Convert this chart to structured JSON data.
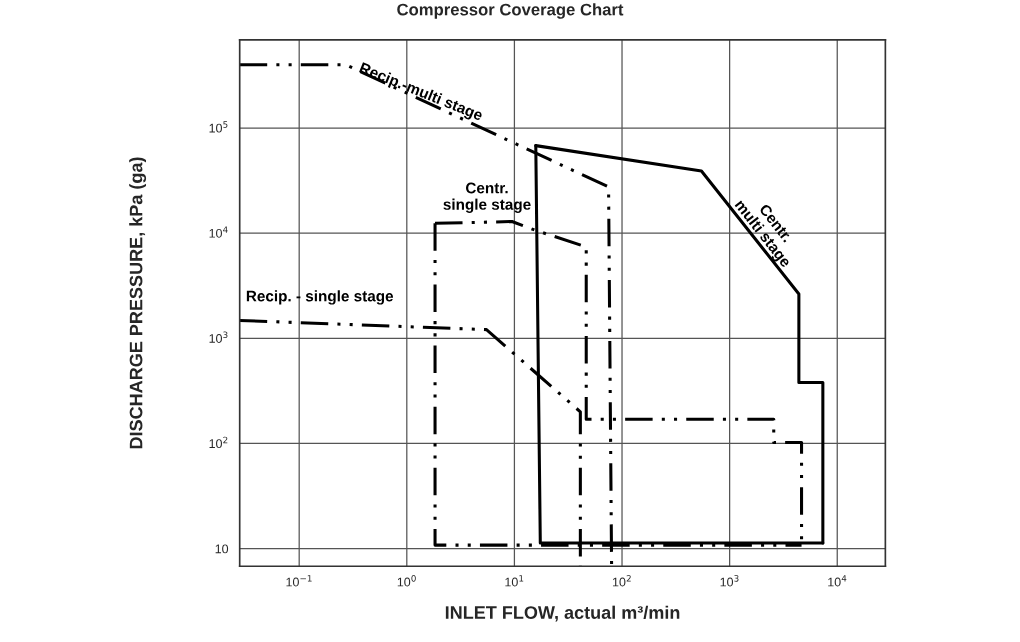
{
  "chart_data": {
    "type": "line",
    "title": "Compressor Coverage Chart",
    "xlabel": "INLET FLOW, actual m³/min",
    "ylabel": "DISCHARGE PRESSURE, kPa (ga)",
    "log": "xy",
    "grid": true,
    "legend": false,
    "marker": "none",
    "xlim": [
      0.028,
      28000
    ],
    "ylim": [
      6.8,
      690000
    ],
    "xticks": [
      {
        "value": 0.1,
        "label": "10$^{−1}$"
      },
      {
        "value": 1,
        "label": "10$^{0}$"
      },
      {
        "value": 10,
        "label": "10$^{1}$"
      },
      {
        "value": 100,
        "label": "10$^{2}$"
      },
      {
        "value": 1000,
        "label": "10$^{3}$"
      },
      {
        "value": 10000,
        "label": "10$^{4}$"
      }
    ],
    "yticks": [
      10,
      {
        "value": 100,
        "label": "10$^{2}$"
      },
      {
        "value": 1000,
        "label": "10$^{3}$"
      },
      {
        "value": 10000,
        "label": "10$^{4}$"
      },
      {
        "value": 100000,
        "label": "10$^{5}$"
      }
    ],
    "series": [
      {
        "name": "Recip.-multi stage",
        "color": "#000000",
        "line_style": "dashed",
        "x": [
          0.028,
          0.27,
          75,
          80
        ],
        "values": [
          400000,
          400000,
          27500,
          6.8
        ]
      },
      {
        "name": "Centr.\nsingle stage",
        "color": "#000000",
        "line_style": "dashed",
        "x": [
          1.83,
          9.5,
          15.5,
          46.5,
          46.5,
          2570,
          2570,
          4660,
          4660
        ],
        "values": [
          12400,
          12900,
          10700,
          7400,
          170,
          170,
          102,
          102,
          10.8
        ]
      },
      {
        "color": "#000000",
        "line_style": "dashed",
        "x": [
          1.83,
          1.83,
          4660
        ],
        "values": [
          12400,
          10.8,
          10.8
        ]
      },
      {
        "name": "Recip. - single stage",
        "color": "#000000",
        "line_style": "dashed",
        "x": [
          0.028,
          5.5,
          41,
          41
        ],
        "values": [
          1480,
          1210,
          200,
          6.8
        ]
      },
      {
        "name": "Centr.\nmulti stage",
        "color": "#000000",
        "line_style": "solid",
        "x": [
          15.8,
          547,
          4400,
          4400,
          7350,
          7350
        ],
        "values": [
          68000,
          39000,
          2640,
          380,
          380,
          11.3
        ]
      },
      {
        "color": "#000000",
        "line_style": "solid",
        "x": [
          15.8,
          17.4,
          7350
        ],
        "values": [
          68000,
          11.3,
          11.3
        ]
      }
    ]
  }
}
